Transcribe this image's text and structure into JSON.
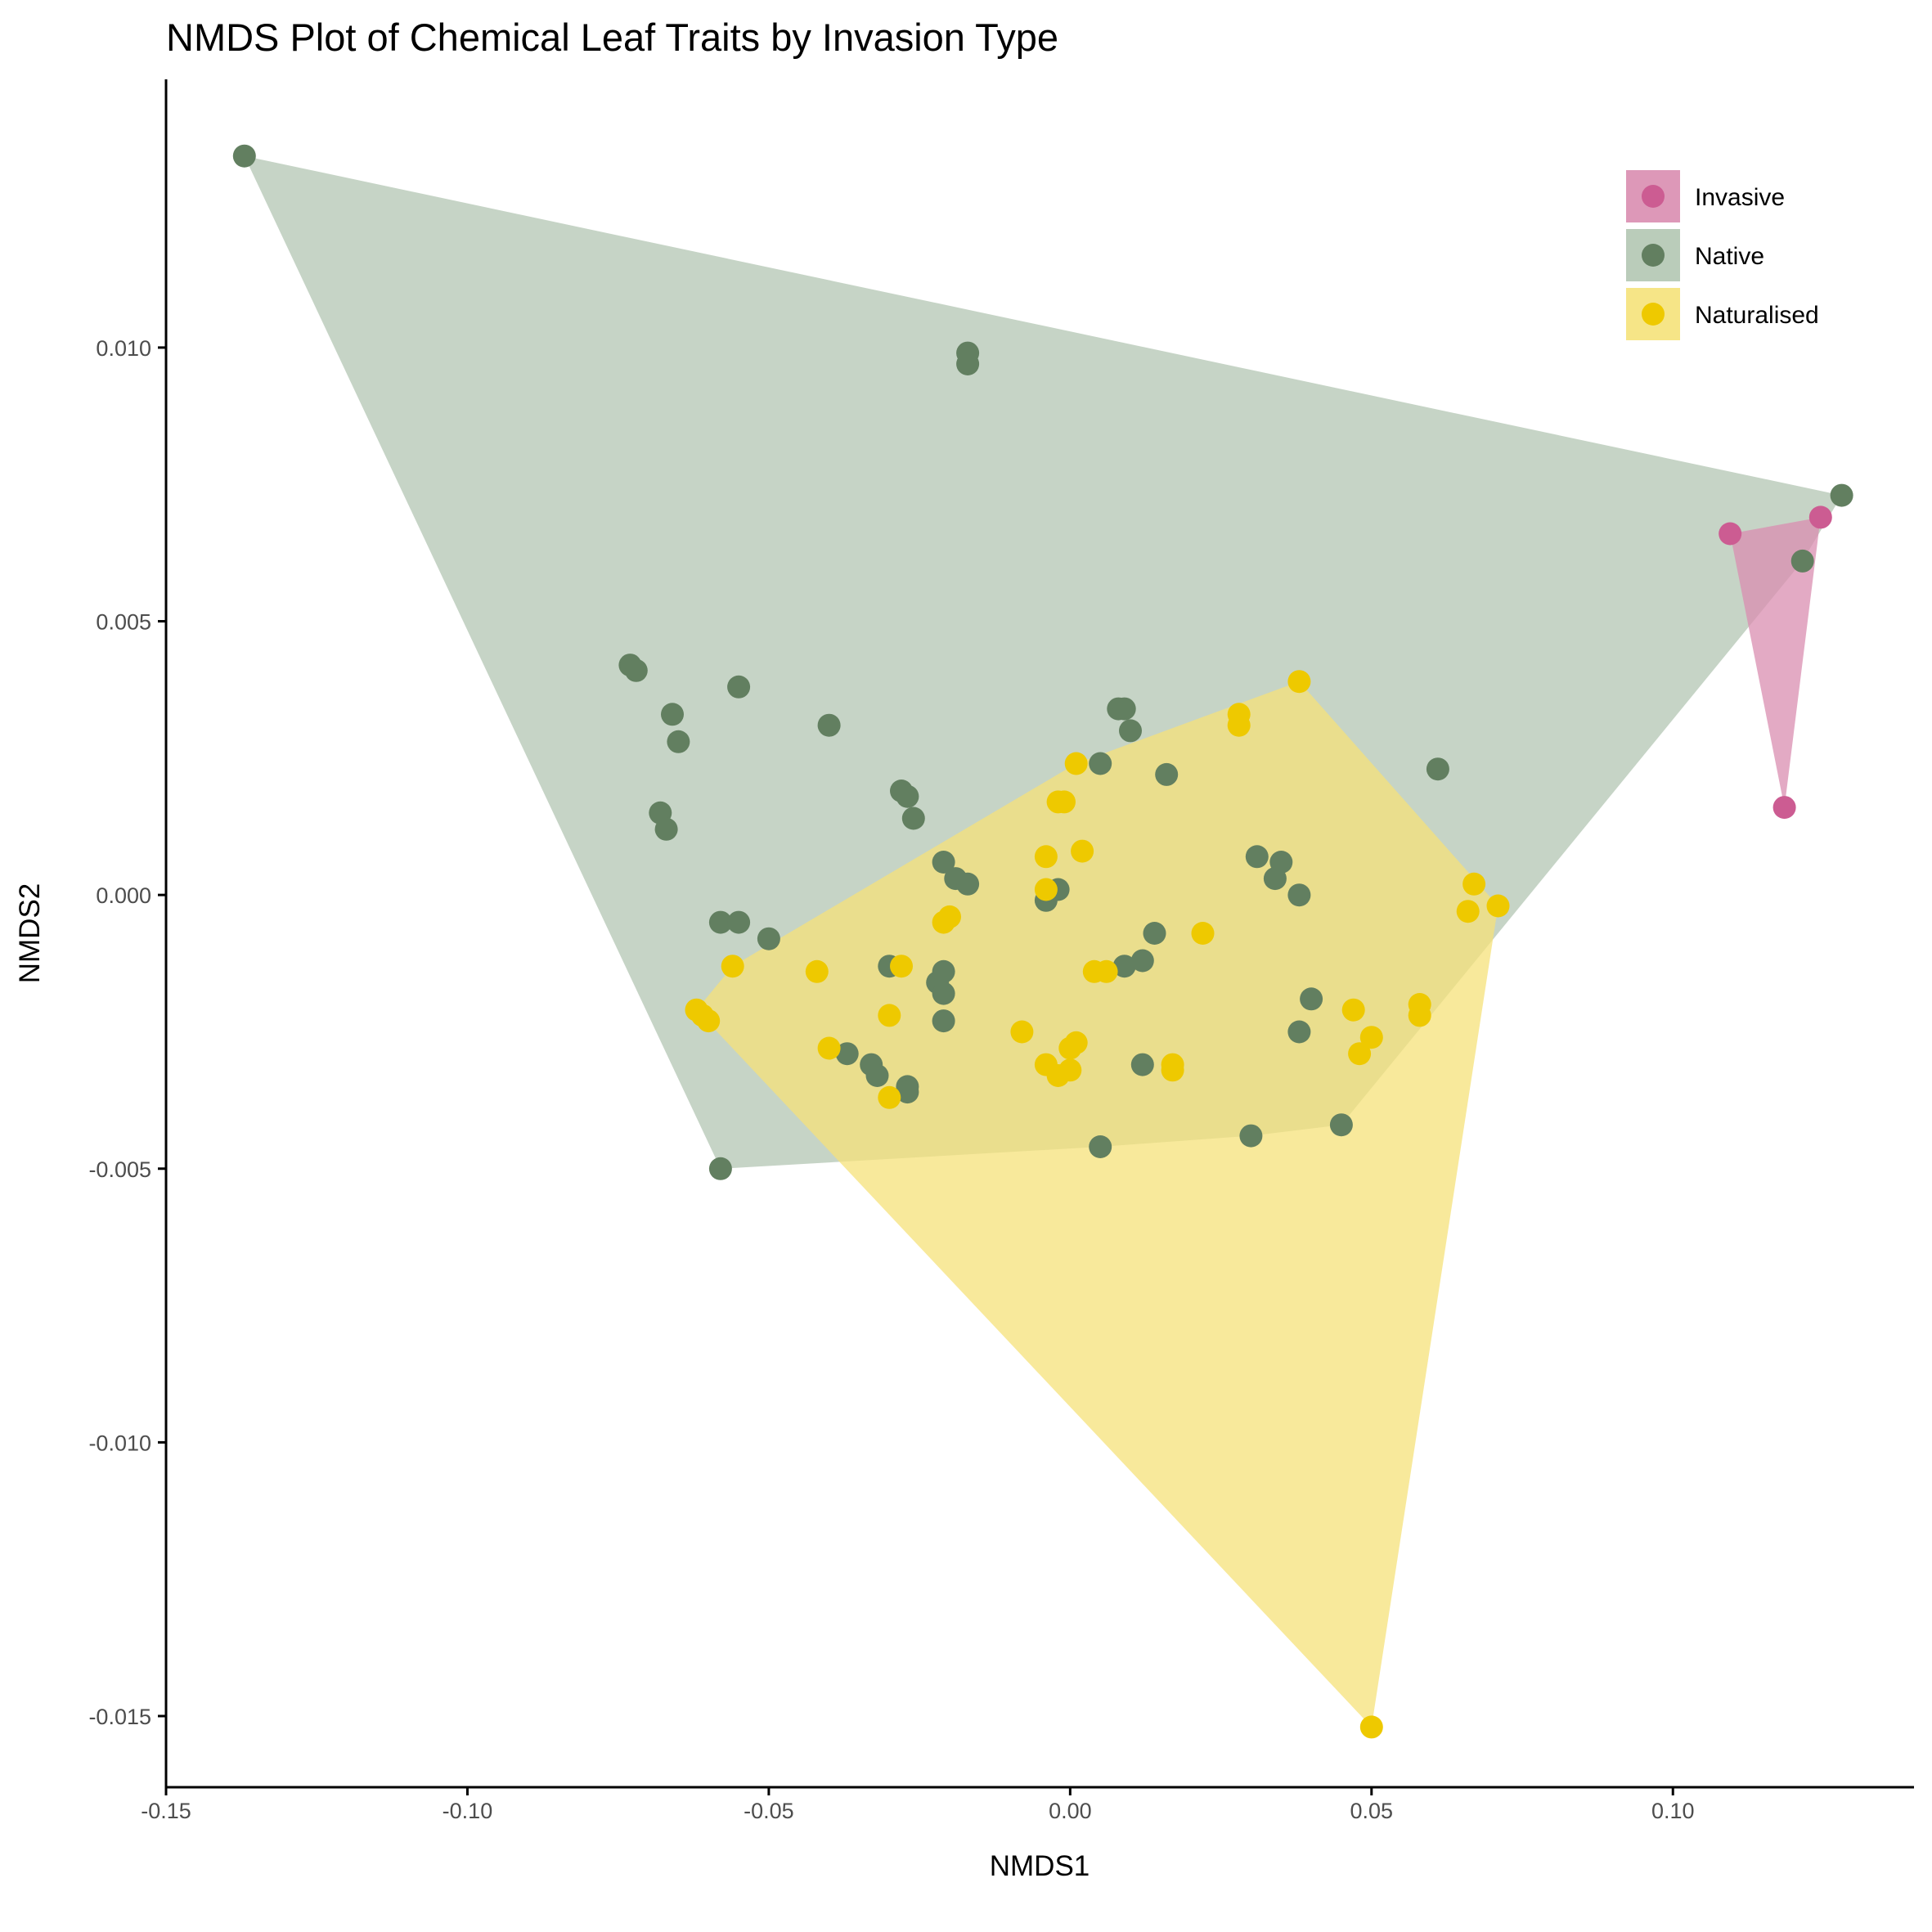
{
  "chart_data": {
    "type": "scatter",
    "title": "NMDS Plot of Chemical Leaf Traits by Invasion Type",
    "xlabel": "NMDS1",
    "ylabel": "NMDS2",
    "xlim": [
      -0.15,
      0.14
    ],
    "ylim": [
      -0.0163,
      0.0149
    ],
    "x_ticks": [
      -0.15,
      -0.1,
      -0.05,
      0.0,
      0.05,
      0.1
    ],
    "x_tick_labels": [
      "-0.15",
      "-0.10",
      "-0.05",
      "0.00",
      "0.05",
      "0.10"
    ],
    "y_ticks": [
      -0.015,
      -0.01,
      -0.005,
      0.0,
      0.005,
      0.01
    ],
    "y_tick_labels": [
      "-0.015",
      "-0.010",
      "-0.005",
      "0.000",
      "0.005",
      "0.010"
    ],
    "grid": false,
    "legend_position": "top-right",
    "hulls": true,
    "series": [
      {
        "name": "Invasive",
        "color": "#cc5c92",
        "fill": "#d98db0",
        "points": [
          [
            0.1095,
            0.0066
          ],
          [
            0.1245,
            0.0069
          ],
          [
            0.1185,
            0.0016
          ]
        ]
      },
      {
        "name": "Native",
        "color": "#627f60",
        "fill": "#b3c6b3",
        "points": [
          [
            -0.137,
            0.0135
          ],
          [
            -0.017,
            0.0099
          ],
          [
            -0.017,
            0.0097
          ],
          [
            0.128,
            0.0073
          ],
          [
            0.1215,
            0.0061
          ],
          [
            -0.073,
            0.0042
          ],
          [
            -0.072,
            0.0041
          ],
          [
            -0.055,
            0.0038
          ],
          [
            -0.066,
            0.0033
          ],
          [
            -0.065,
            0.0028
          ],
          [
            -0.04,
            0.0031
          ],
          [
            0.008,
            0.0034
          ],
          [
            0.009,
            0.0034
          ],
          [
            0.01,
            0.003
          ],
          [
            0.005,
            0.0024
          ],
          [
            0.016,
            0.0022
          ],
          [
            0.061,
            0.0023
          ],
          [
            -0.028,
            0.0019
          ],
          [
            -0.027,
            0.0018
          ],
          [
            -0.026,
            0.0014
          ],
          [
            -0.068,
            0.0015
          ],
          [
            -0.067,
            0.0012
          ],
          [
            -0.021,
            0.0006
          ],
          [
            -0.019,
            0.0003
          ],
          [
            -0.017,
            0.0002
          ],
          [
            -0.004,
            -0.0001
          ],
          [
            -0.002,
            0.0001
          ],
          [
            0.031,
            0.0007
          ],
          [
            0.035,
            0.0006
          ],
          [
            0.034,
            0.0003
          ],
          [
            0.038,
            0.0
          ],
          [
            -0.058,
            -0.0005
          ],
          [
            -0.055,
            -0.0005
          ],
          [
            -0.05,
            -0.0008
          ],
          [
            -0.03,
            -0.0013
          ],
          [
            -0.022,
            -0.0016
          ],
          [
            -0.021,
            -0.0014
          ],
          [
            -0.021,
            -0.0018
          ],
          [
            -0.021,
            -0.0023
          ],
          [
            0.009,
            -0.0013
          ],
          [
            0.012,
            -0.0012
          ],
          [
            0.014,
            -0.0007
          ],
          [
            0.04,
            -0.0019
          ],
          [
            0.038,
            -0.0025
          ],
          [
            -0.037,
            -0.0029
          ],
          [
            -0.033,
            -0.0031
          ],
          [
            -0.032,
            -0.0033
          ],
          [
            -0.027,
            -0.0035
          ],
          [
            -0.027,
            -0.0036
          ],
          [
            0.012,
            -0.0031
          ],
          [
            0.005,
            -0.0046
          ],
          [
            0.03,
            -0.0044
          ],
          [
            0.045,
            -0.0042
          ],
          [
            -0.058,
            -0.005
          ]
        ]
      },
      {
        "name": "Naturalised",
        "color": "#eec900",
        "fill": "#f5e27a",
        "points": [
          [
            0.038,
            0.0039
          ],
          [
            0.028,
            0.0033
          ],
          [
            0.028,
            0.0031
          ],
          [
            0.001,
            0.0024
          ],
          [
            -0.002,
            0.0017
          ],
          [
            -0.001,
            0.0017
          ],
          [
            -0.004,
            0.0007
          ],
          [
            -0.004,
            0.0001
          ],
          [
            0.002,
            0.0008
          ],
          [
            -0.021,
            -0.0005
          ],
          [
            -0.02,
            -0.0004
          ],
          [
            0.022,
            -0.0007
          ],
          [
            0.067,
            0.0002
          ],
          [
            0.066,
            -0.0003
          ],
          [
            0.071,
            -0.0002
          ],
          [
            -0.056,
            -0.0013
          ],
          [
            -0.042,
            -0.0014
          ],
          [
            -0.028,
            -0.0013
          ],
          [
            0.004,
            -0.0014
          ],
          [
            0.006,
            -0.0014
          ],
          [
            -0.062,
            -0.0021
          ],
          [
            -0.061,
            -0.0022
          ],
          [
            -0.06,
            -0.0023
          ],
          [
            -0.03,
            -0.0022
          ],
          [
            -0.008,
            -0.0025
          ],
          [
            0.047,
            -0.0021
          ],
          [
            0.058,
            -0.002
          ],
          [
            0.058,
            -0.0022
          ],
          [
            -0.04,
            -0.0028
          ],
          [
            0.001,
            -0.0027
          ],
          [
            0.0,
            -0.0028
          ],
          [
            0.048,
            -0.0029
          ],
          [
            0.05,
            -0.0026
          ],
          [
            -0.004,
            -0.0031
          ],
          [
            -0.002,
            -0.0033
          ],
          [
            0.0,
            -0.0032
          ],
          [
            0.017,
            -0.0031
          ],
          [
            0.017,
            -0.0032
          ],
          [
            -0.03,
            -0.0037
          ],
          [
            0.05,
            -0.0152
          ]
        ]
      }
    ]
  }
}
